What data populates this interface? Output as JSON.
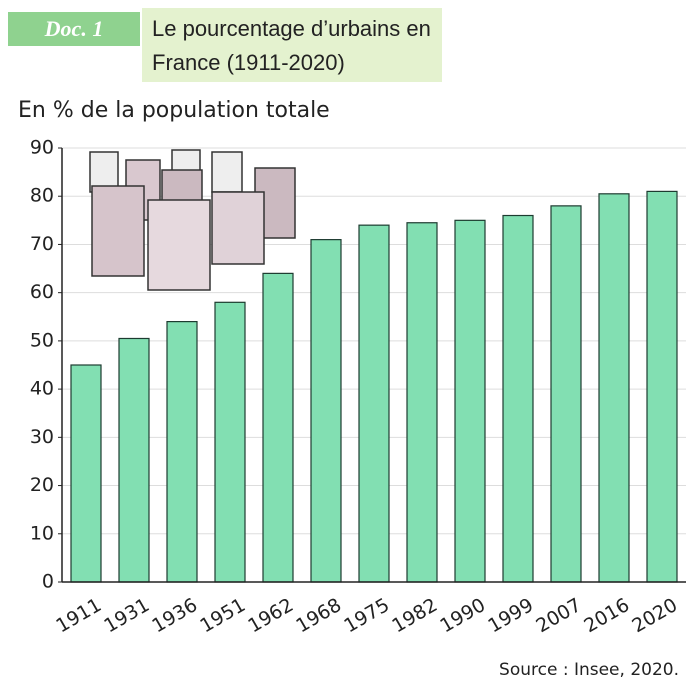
{
  "doc_label": "Doc. 1",
  "chart_data": {
    "type": "bar",
    "title": "Le pourcentage d’urbains en France (1911-2020)",
    "y_label": "En % de la population totale",
    "source": "Source : Insee, 2020.",
    "categories": [
      "1911",
      "1931",
      "1936",
      "1951",
      "1962",
      "1968",
      "1975",
      "1982",
      "1990",
      "1999",
      "2007",
      "2016",
      "2020"
    ],
    "values": [
      45,
      50.5,
      54,
      58,
      64,
      71,
      74,
      74.5,
      75,
      76,
      78,
      80.5,
      81
    ],
    "color": "#82dfb2",
    "ylim": [
      0,
      90
    ],
    "yticks": [
      0,
      10,
      20,
      30,
      40,
      50,
      60,
      70,
      80,
      90
    ],
    "grid": true
  }
}
